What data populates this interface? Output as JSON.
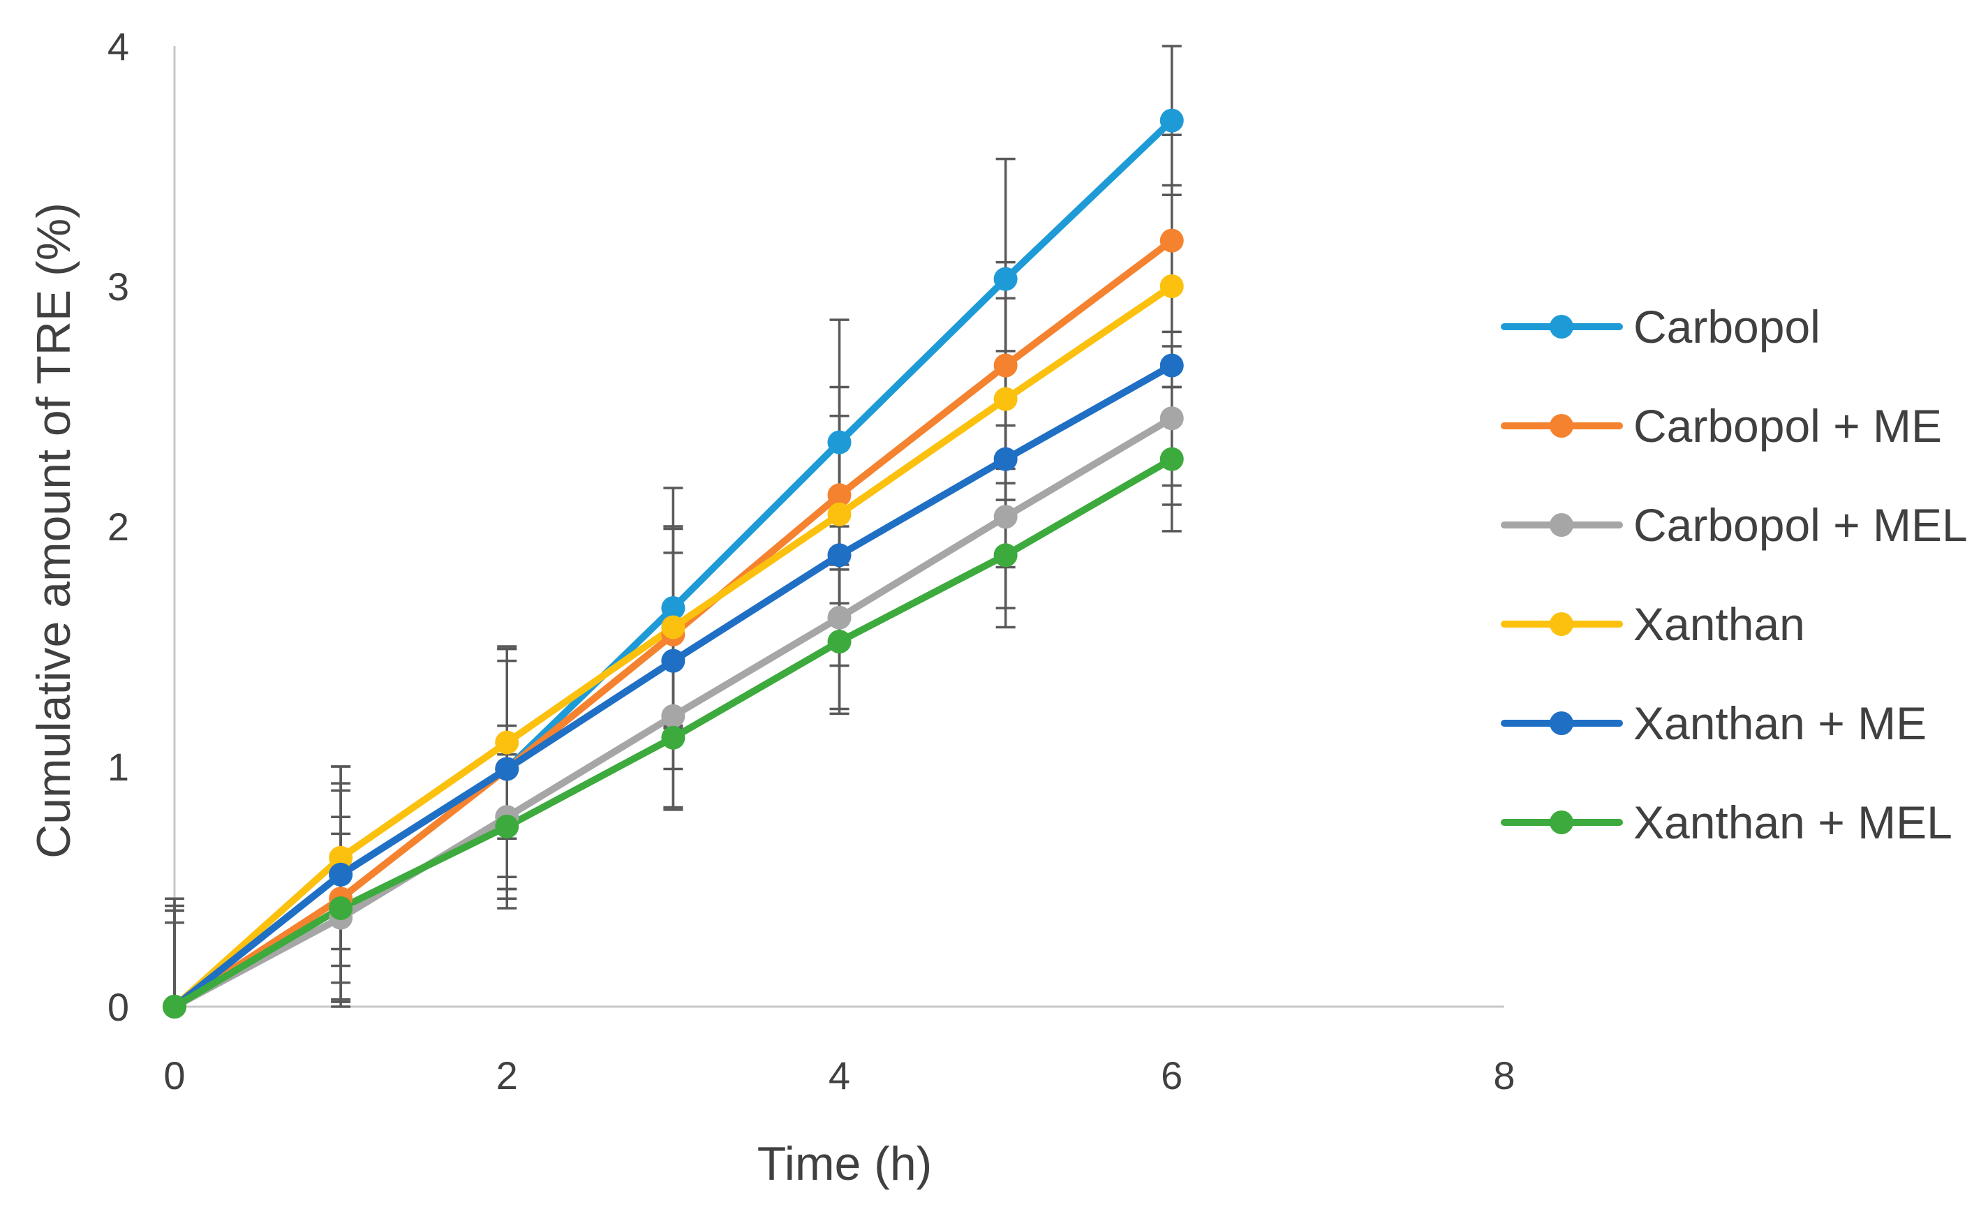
{
  "chart_data": {
    "type": "line",
    "title": "",
    "xlabel": "Time (h)",
    "ylabel": "Cumulative amount of TRE (%)",
    "xlim": [
      0,
      8
    ],
    "ylim": [
      0,
      4
    ],
    "xticks": [
      0,
      2,
      4,
      6,
      8
    ],
    "yticks": [
      0,
      1,
      2,
      3,
      4
    ],
    "grid": false,
    "legend_position": "right",
    "x": [
      0,
      1,
      2,
      3,
      4,
      5,
      6
    ],
    "series": [
      {
        "name": "Carbopol",
        "color": "#1E9BD7",
        "values": [
          0,
          0.55,
          0.99,
          1.66,
          2.35,
          3.03,
          3.69
        ],
        "errors": [
          0.4,
          0.45,
          0.5,
          0.5,
          0.51,
          0.5,
          0.31
        ]
      },
      {
        "name": "Carbopol + ME",
        "color": "#F5822E",
        "values": [
          0,
          0.45,
          0.99,
          1.55,
          2.13,
          2.67,
          3.19
        ],
        "errors": [
          0.45,
          0.45,
          0.5,
          0.45,
          0.45,
          0.43,
          0.44
        ]
      },
      {
        "name": "Carbopol + MEL",
        "color": "#A6A6A6",
        "values": [
          0,
          0.37,
          0.79,
          1.21,
          1.62,
          2.04,
          2.45
        ],
        "errors": [
          0.35,
          0.35,
          0.38,
          0.38,
          0.38,
          0.38,
          0.36
        ]
      },
      {
        "name": "Xanthan",
        "color": "#FBC10E",
        "values": [
          0,
          0.62,
          1.1,
          1.58,
          2.05,
          2.53,
          3.0
        ],
        "errors": [
          0.4,
          0.38,
          0.4,
          0.41,
          0.41,
          0.42,
          0.42
        ]
      },
      {
        "name": "Xanthan + ME",
        "color": "#1F6FC5",
        "values": [
          0,
          0.55,
          0.99,
          1.44,
          1.88,
          2.28,
          2.67
        ],
        "errors": [
          0.45,
          0.38,
          0.45,
          0.45,
          0.46,
          0.45,
          0.5
        ]
      },
      {
        "name": "Xanthan + MEL",
        "color": "#3CAA3C",
        "values": [
          0,
          0.41,
          0.75,
          1.12,
          1.52,
          1.88,
          2.28
        ],
        "errors": [
          0.42,
          0.38,
          0.3,
          0.3,
          0.3,
          0.3,
          0.3
        ]
      }
    ]
  }
}
